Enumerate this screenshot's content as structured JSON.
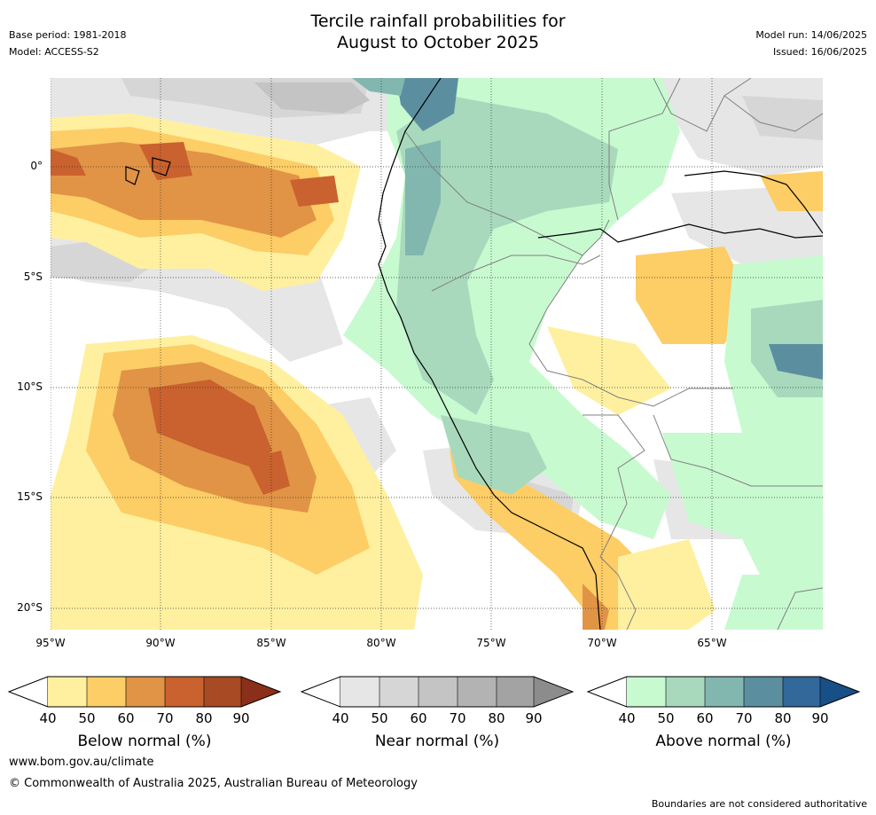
{
  "header": {
    "title_line1": "Tercile rainfall probabilities for",
    "title_line2": "August to October 2025",
    "base_period": "Base period: 1981-2018",
    "model": "Model: ACCESS-S2",
    "model_run": "Model run: 14/06/2025",
    "issued": "Issued: 16/06/2025"
  },
  "map": {
    "lat_labels": [
      "0°",
      "5°S",
      "10°S",
      "15°S",
      "20°S"
    ],
    "lon_labels": [
      "95°W",
      "90°W",
      "85°W",
      "80°W",
      "75°W",
      "70°W",
      "65°W"
    ],
    "colors": {
      "below": [
        "#fff0a0",
        "#fdcd66",
        "#e19445",
        "#c9622e",
        "#a84a23",
        "#8a2f1a"
      ],
      "near": [
        "#e6e6e6",
        "#d6d6d6",
        "#c4c4c4",
        "#b3b3b3",
        "#a3a3a3",
        "#8c8c8c"
      ],
      "above": [
        "#c8fad0",
        "#a8d9bc",
        "#82b7b0",
        "#5b8fa0",
        "#32689a",
        "#174f86"
      ],
      "coastline": "#000000",
      "border": "#808080"
    }
  },
  "legends": [
    {
      "title": "Below normal (%)",
      "ticks": [
        "40",
        "50",
        "60",
        "70",
        "80",
        "90"
      ]
    },
    {
      "title": "Near normal (%)",
      "ticks": [
        "40",
        "50",
        "60",
        "70",
        "80",
        "90"
      ]
    },
    {
      "title": "Above normal (%)",
      "ticks": [
        "40",
        "50",
        "60",
        "70",
        "80",
        "90"
      ]
    }
  ],
  "footer": {
    "website": "www.bom.gov.au/climate",
    "copyright": "© Commonwealth of Australia 2025, Australian Bureau of Meteorology",
    "disclaimer": "Boundaries are not considered authoritative"
  }
}
